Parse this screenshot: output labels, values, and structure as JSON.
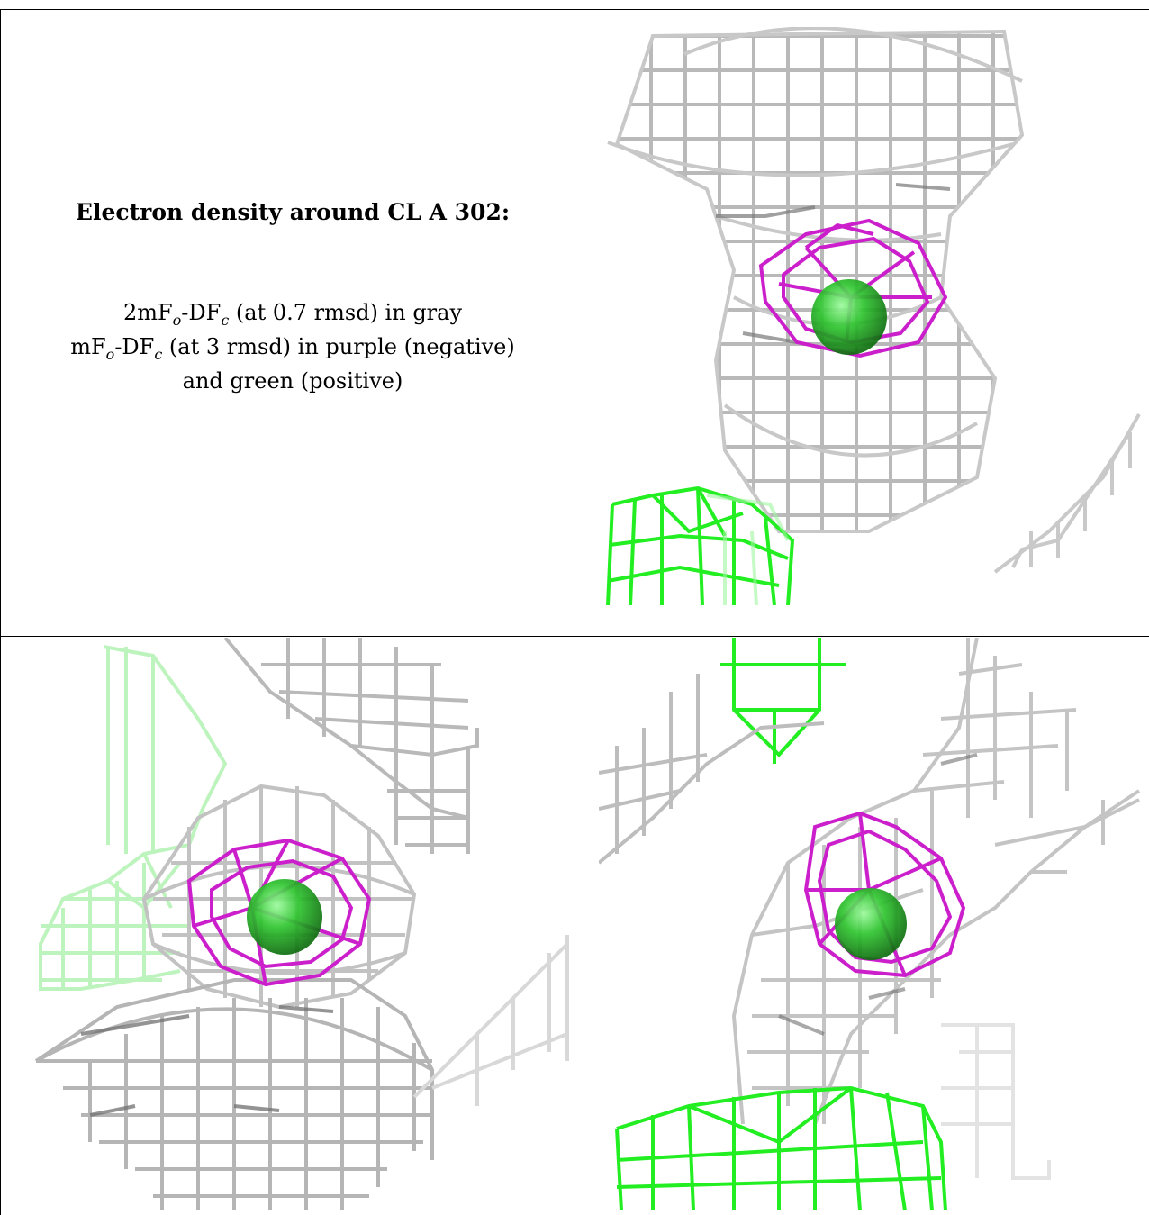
{
  "caption": {
    "title": "Electron density around CL A 302:",
    "line1_prefix": "2mF",
    "line1_sub1": "o",
    "line1_mid": "-DF",
    "line1_sub2": "c",
    "line1_suffix": " (at 0.7 rmsd) in gray",
    "line2_prefix": "mF",
    "line2_sub1": "o",
    "line2_mid": "-DF",
    "line2_sub2": "c",
    "line2_suffix": " (at 3 rmsd) in purple (negative)",
    "line3": "and green (positive)"
  },
  "colors": {
    "gray_mesh": "#b8b8b8",
    "gray_dark": "#6e6e6e",
    "purple_mesh": "#cc1fcc",
    "green_mesh": "#22ee22",
    "ion_sphere": "#2ec42e"
  },
  "panels": [
    {
      "name": "view-top-right"
    },
    {
      "name": "view-bottom-left"
    },
    {
      "name": "view-bottom-right"
    }
  ]
}
